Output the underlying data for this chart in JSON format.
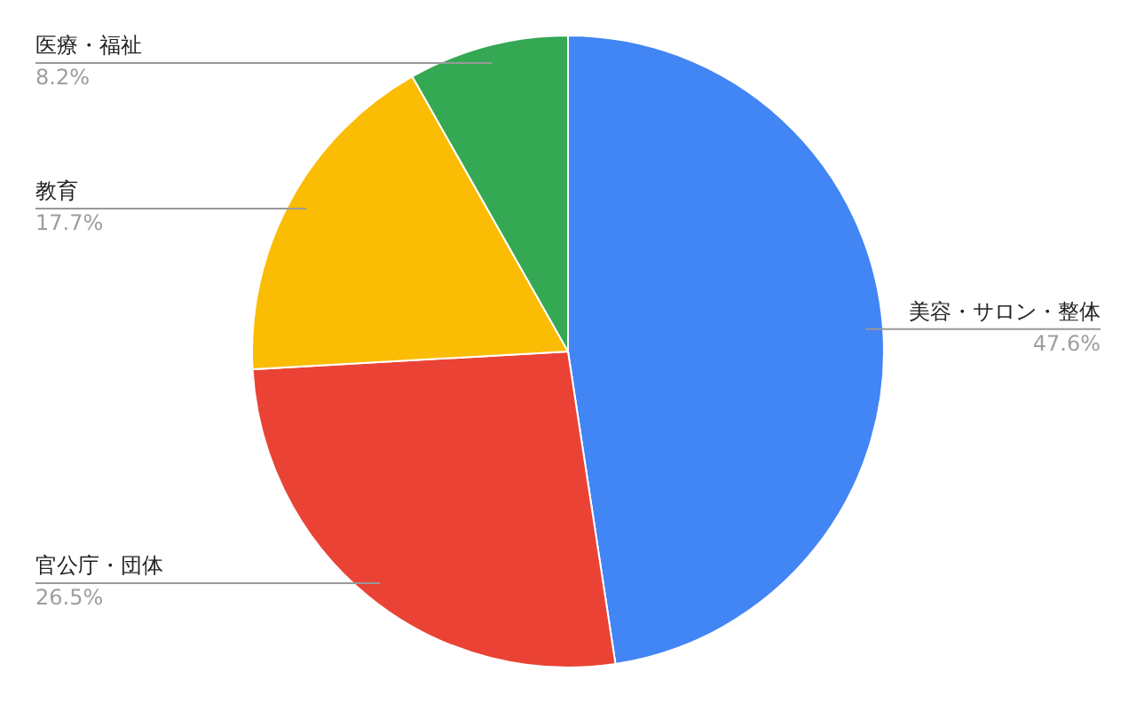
{
  "chart_data": {
    "type": "pie",
    "categories": [
      "美容・サロン・整体",
      "官公庁・団体",
      "教育",
      "医療・福祉"
    ],
    "values": [
      47.6,
      26.5,
      17.7,
      8.2
    ],
    "colors": [
      "#4285f4",
      "#ea4335",
      "#fbbc04",
      "#34a853"
    ],
    "value_labels": [
      "47.6%",
      "26.5%",
      "17.7%",
      "8.2%"
    ]
  }
}
